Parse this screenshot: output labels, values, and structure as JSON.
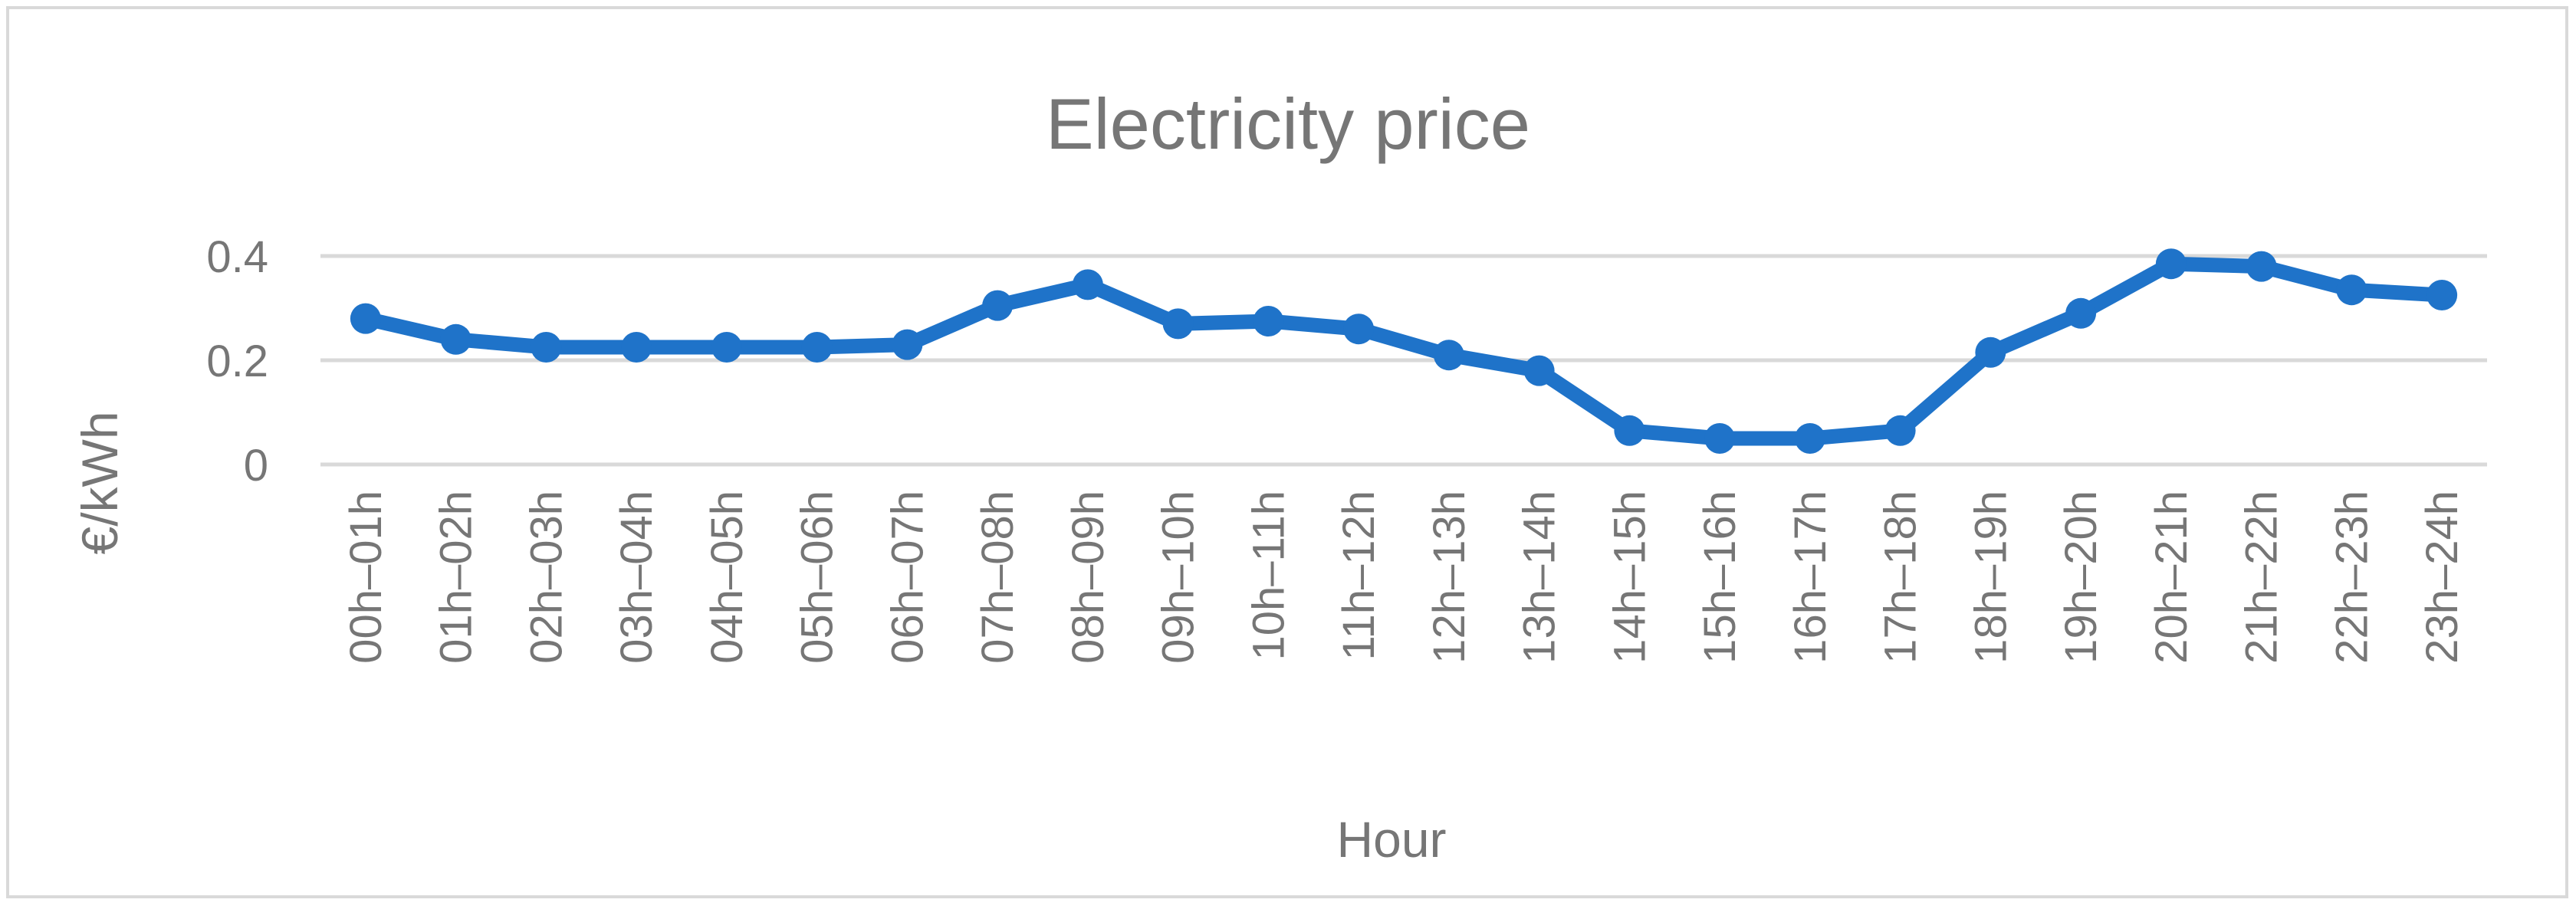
{
  "chart_data": {
    "type": "line",
    "title": "Electricity price",
    "xlabel": "Hour",
    "ylabel": "€/kWh",
    "ylim": [
      0,
      0.4
    ],
    "yticks": [
      0,
      0.2,
      0.4
    ],
    "ytick_labels": [
      "0",
      "0.2",
      "0.4"
    ],
    "grid": true,
    "legend": "none",
    "color": "#1f73c9",
    "categories": [
      "00h–01h",
      "01h–02h",
      "02h–03h",
      "03h–04h",
      "04h–05h",
      "05h–06h",
      "06h–07h",
      "07h–08h",
      "08h–09h",
      "09h–10h",
      "10h–11h",
      "11h–12h",
      "12h–13h",
      "13h–14h",
      "14h–15h",
      "15h–16h",
      "16h–17h",
      "17h–18h",
      "18h–19h",
      "19h–20h",
      "20h–21h",
      "21h–22h",
      "22h–23h",
      "23h–24h"
    ],
    "series": [
      {
        "values": [
          0.28,
          0.24,
          0.225,
          0.225,
          0.225,
          0.225,
          0.23,
          0.305,
          0.345,
          0.27,
          0.275,
          0.26,
          0.21,
          0.18,
          0.065,
          0.05,
          0.05,
          0.065,
          0.215,
          0.29,
          0.385,
          0.38,
          0.335,
          0.325
        ]
      }
    ]
  }
}
